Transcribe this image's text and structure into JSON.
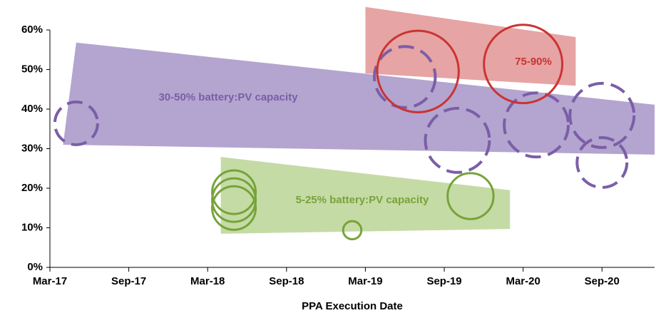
{
  "chart_data": {
    "type": "bubble-band",
    "x_label": "PPA Execution Date",
    "xlim": [
      "2017-03",
      "2021-01"
    ],
    "xticks": [
      {
        "value": "2017-03",
        "label": "Mar-17"
      },
      {
        "value": "2017-09",
        "label": "Sep-17"
      },
      {
        "value": "2018-03",
        "label": "Mar-18"
      },
      {
        "value": "2018-09",
        "label": "Sep-18"
      },
      {
        "value": "2019-03",
        "label": "Mar-19"
      },
      {
        "value": "2019-09",
        "label": "Sep-19"
      },
      {
        "value": "2020-03",
        "label": "Mar-20"
      },
      {
        "value": "2020-09",
        "label": "Sep-20"
      }
    ],
    "ylim": [
      0,
      60
    ],
    "yticks": [
      {
        "value": 0,
        "label": "0%"
      },
      {
        "value": 10,
        "label": "10%"
      },
      {
        "value": 20,
        "label": "20%"
      },
      {
        "value": 30,
        "label": "30%"
      },
      {
        "value": 40,
        "label": "40%"
      },
      {
        "value": 50,
        "label": "50%"
      },
      {
        "value": 60,
        "label": "60%"
      }
    ],
    "series": [
      {
        "name": "30-50% battery:PV capacity",
        "color": "#7b5ea7",
        "band_color": "#b3a5cf",
        "dashed": true,
        "band_x": [
          "2017-05",
          "2021-01",
          "2021-01",
          "2017-04"
        ],
        "band_y": [
          56.8,
          41.1,
          28.5,
          31
        ],
        "x": [
          "2017-05",
          "2019-06",
          "2019-10",
          "2020-04",
          "2020-09",
          "2020-09"
        ],
        "values": [
          36.4,
          48.1,
          32.1,
          36,
          38.4,
          26.5
        ],
        "sizes": [
          5.4,
          7.7,
          8.1,
          8.1,
          8.1,
          6.3
        ]
      },
      {
        "name": "5-25% battery:PV capacity",
        "color": "#77a33a",
        "band_color": "#c5dba5",
        "dashed": false,
        "band_x": [
          "2018-04",
          "2020-02",
          "2020-02",
          "2018-04"
        ],
        "band_y": [
          27.9,
          19.5,
          9.7,
          8.5
        ],
        "x": [
          "2018-05",
          "2018-05",
          "2018-05",
          "2019-02",
          "2019-11"
        ],
        "values": [
          19,
          17,
          15,
          9.4,
          18
        ],
        "sizes": [
          5.5,
          5.5,
          5.5,
          2.3,
          5.8
        ]
      },
      {
        "name": "75-90%",
        "color": "#cc3333",
        "band_color": "#e6a4a4",
        "dashed": false,
        "band_x": [
          "2019-03",
          "2020-07",
          "2020-07",
          "2019-03"
        ],
        "band_y": [
          65.8,
          58.2,
          45.9,
          49
        ],
        "x": [
          "2019-07",
          "2020-03"
        ],
        "values": [
          49.5,
          51.4
        ],
        "sizes": [
          10.3,
          9.9
        ]
      }
    ]
  }
}
